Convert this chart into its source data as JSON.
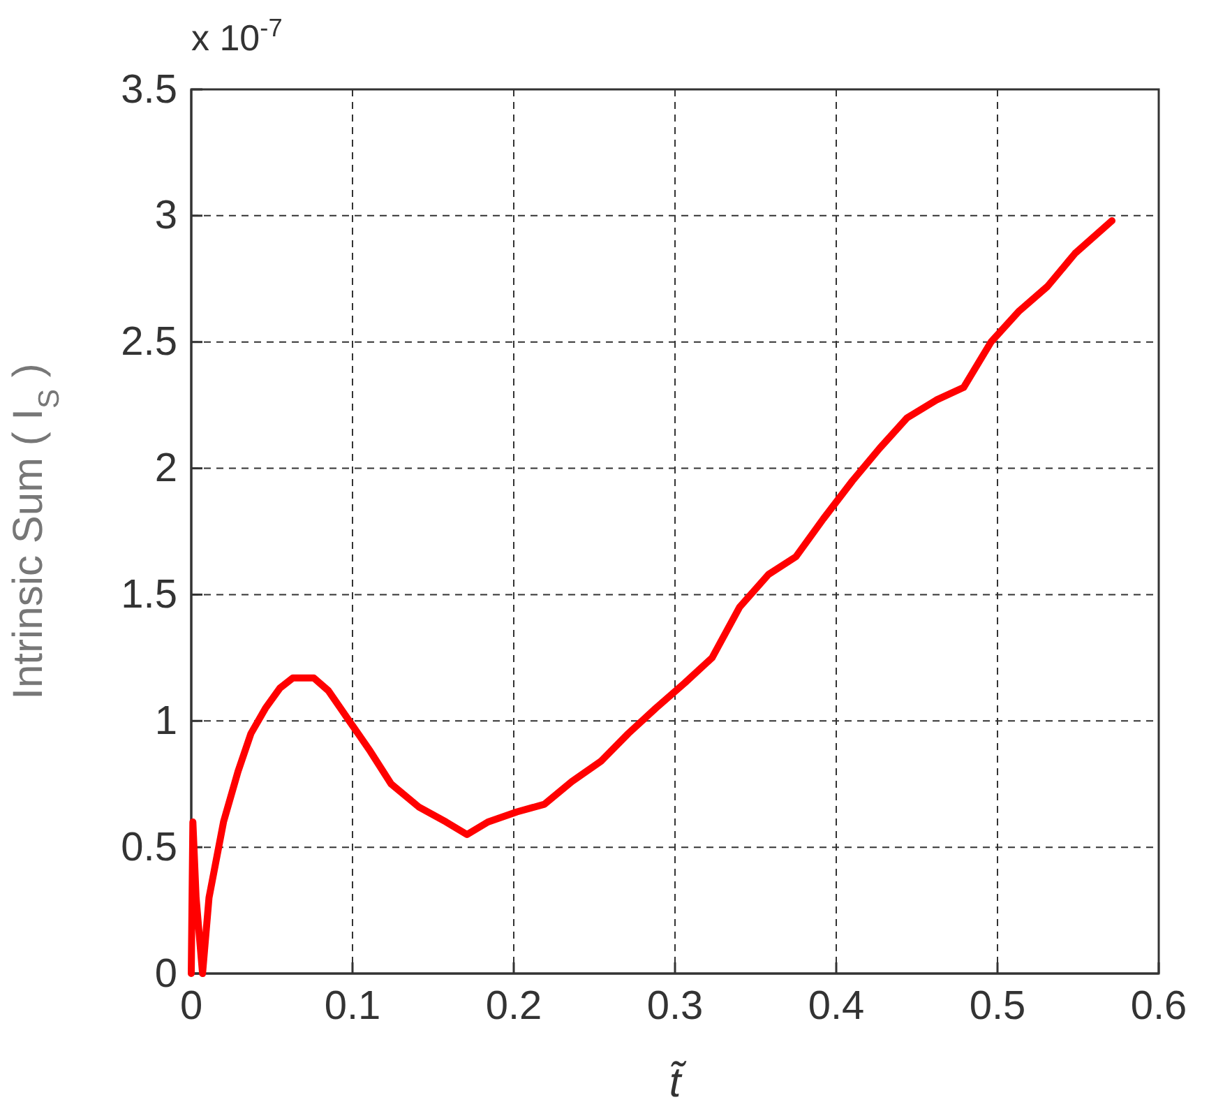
{
  "chart_data": {
    "type": "line",
    "xlabel": "t̃",
    "ylabel": "Intrinsic Sum ( I$_{S}$ )",
    "annotations": [
      "x 10$^{-7}$"
    ],
    "xlim": [
      0,
      0.6
    ],
    "xticks": [
      0,
      0.1,
      0.2,
      0.3,
      0.4,
      0.5,
      0.6
    ],
    "ylim": [
      0,
      3.5
    ],
    "yticks": [
      0,
      0.5,
      1,
      1.5,
      2,
      2.5,
      3,
      3.5
    ],
    "grid": true,
    "line_style": "solid",
    "marker": "none",
    "series": [
      {
        "color": "#ff0000",
        "x": [
          0,
          0.001,
          0.003,
          0.007,
          0.011,
          0.02,
          0.029,
          0.037,
          0.046,
          0.055,
          0.063,
          0.076,
          0.085,
          0.098,
          0.111,
          0.124,
          0.141,
          0.158,
          0.171,
          0.184,
          0.202,
          0.219,
          0.236,
          0.254,
          0.271,
          0.288,
          0.306,
          0.323,
          0.34,
          0.358,
          0.375,
          0.392,
          0.41,
          0.427,
          0.444,
          0.462,
          0.479,
          0.496,
          0.513,
          0.531,
          0.548,
          0.571
        ],
        "values": [
          0,
          0.6,
          0.3,
          0,
          0.3,
          0.6,
          0.8,
          0.95,
          1.05,
          1.13,
          1.17,
          1.17,
          1.12,
          1,
          0.88,
          0.75,
          0.66,
          0.6,
          0.55,
          0.6,
          0.64,
          0.67,
          0.76,
          0.84,
          0.95,
          1.05,
          1.15,
          1.25,
          1.45,
          1.58,
          1.65,
          1.8,
          1.95,
          2.08,
          2.2,
          2.27,
          2.32,
          2.5,
          2.62,
          2.72,
          2.85,
          2.98
        ]
      }
    ]
  }
}
